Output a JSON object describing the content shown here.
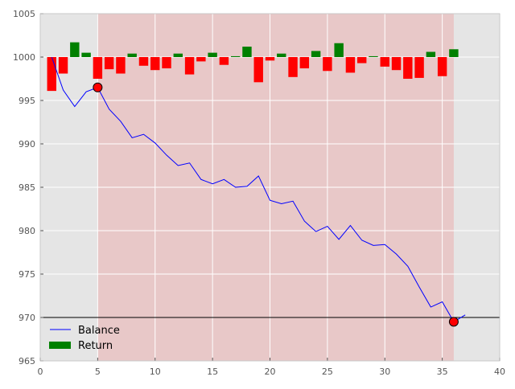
{
  "chart_data": {
    "type": "bar",
    "xlim": [
      0,
      40
    ],
    "ylim": [
      965,
      1005
    ],
    "x_ticks": [
      "0",
      "5",
      "10",
      "15",
      "20",
      "25",
      "30",
      "35",
      "40"
    ],
    "y_ticks": [
      "965",
      "970",
      "975",
      "980",
      "985",
      "990",
      "995",
      "1000",
      "1005"
    ],
    "grid": true,
    "background_color": "#e5e5e5",
    "shaded_region": {
      "x_start": 5,
      "x_end": 36,
      "color": "#e8c8c8"
    },
    "reference_line": {
      "y": 970,
      "color": "#000000"
    },
    "legend": {
      "placement": "bottom-left"
    },
    "series": [
      {
        "name": "Balance",
        "type": "line",
        "color": "#0000ff",
        "x": [
          1,
          2,
          3,
          4,
          5,
          6,
          7,
          8,
          9,
          10,
          11,
          12,
          13,
          14,
          15,
          16,
          17,
          18,
          19,
          20,
          21,
          22,
          23,
          24,
          25,
          26,
          27,
          28,
          29,
          30,
          31,
          32,
          33,
          34,
          35,
          36,
          37
        ],
        "y": [
          1000.0,
          996.2,
          994.3,
          996.0,
          996.5,
          994.0,
          992.6,
          990.7,
          991.1,
          990.1,
          988.7,
          987.5,
          987.8,
          985.9,
          985.4,
          985.9,
          985.0,
          985.1,
          986.3,
          983.5,
          983.1,
          983.4,
          981.1,
          979.9,
          980.5,
          979.0,
          980.6,
          978.9,
          978.3,
          978.4,
          977.3,
          975.9,
          973.5,
          971.2,
          971.8,
          969.5,
          970.3
        ]
      },
      {
        "name": "Return",
        "type": "bar",
        "color_positive": "#008000",
        "color_negative": "#ff0000",
        "x": [
          1,
          2,
          3,
          4,
          5,
          6,
          7,
          8,
          9,
          10,
          11,
          12,
          13,
          14,
          15,
          16,
          17,
          18,
          19,
          20,
          21,
          22,
          23,
          24,
          25,
          26,
          27,
          28,
          29,
          30,
          31,
          32,
          33,
          34,
          35,
          36
        ],
        "values": [
          -3.9,
          -1.9,
          1.7,
          0.5,
          -2.5,
          -1.4,
          -1.9,
          0.4,
          -1.0,
          -1.5,
          -1.3,
          0.4,
          -2.0,
          -0.5,
          0.5,
          -0.9,
          0.1,
          1.2,
          -2.9,
          -0.4,
          0.4,
          -2.3,
          -1.3,
          0.7,
          -1.6,
          1.6,
          -1.8,
          -0.7,
          0.1,
          -1.1,
          -1.5,
          -2.5,
          -2.4,
          0.6,
          -2.2,
          0.9
        ]
      }
    ],
    "markers": [
      {
        "x": 5,
        "y": 996.5,
        "color": "#ff0000"
      },
      {
        "x": 36,
        "y": 969.5,
        "color": "#ff0000"
      }
    ]
  }
}
